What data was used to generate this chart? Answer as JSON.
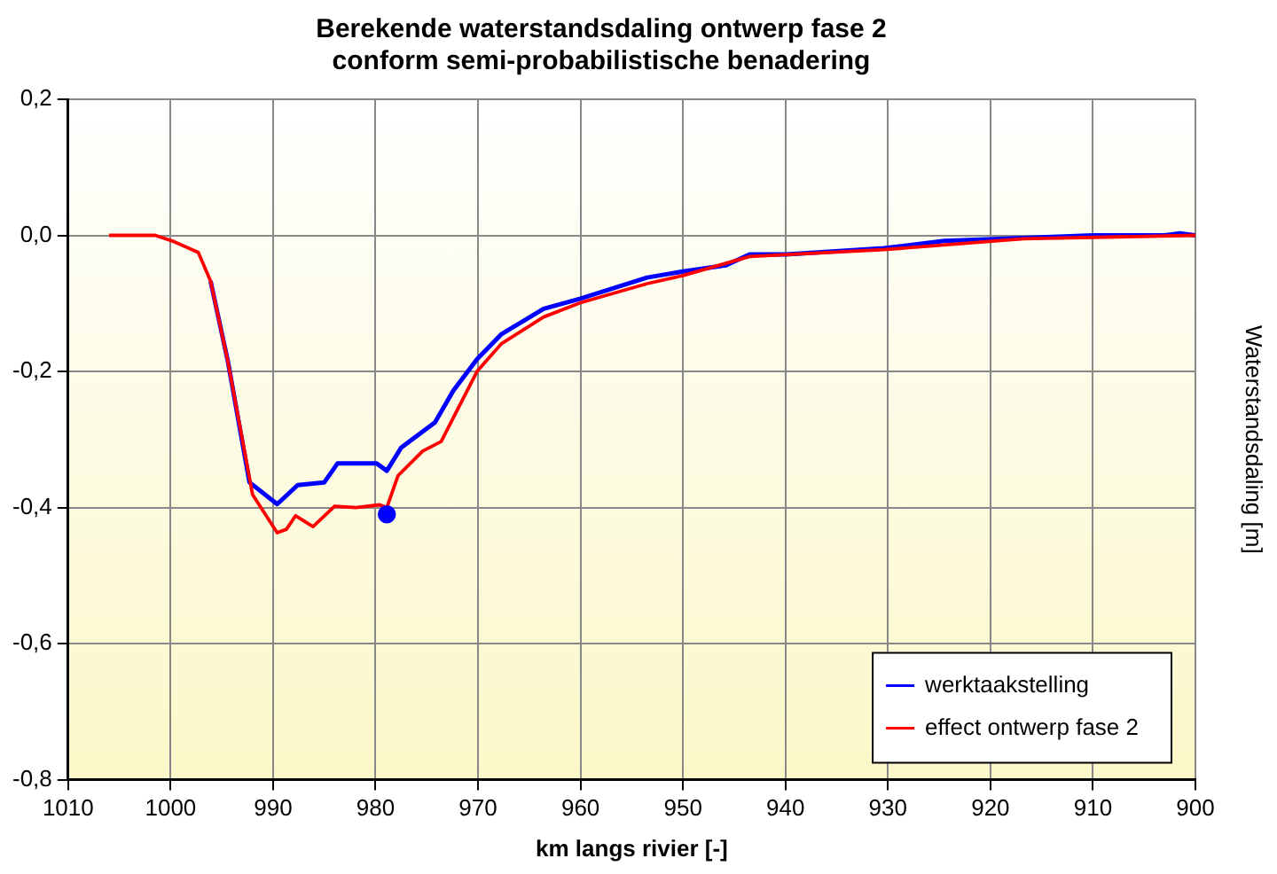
{
  "chart_data": {
    "type": "line",
    "title": "Berekende waterstandsdaling ontwerp fase 2\nconform semi-probabilistische benadering",
    "xlabel": "km langs rivier [-]",
    "ylabel": "Waterstandsdaling [m]",
    "xlim": [
      1010,
      900
    ],
    "xticks": [
      1010,
      1000,
      990,
      980,
      970,
      960,
      950,
      940,
      930,
      920,
      910,
      900
    ],
    "ylim": [
      -0.8,
      0.2
    ],
    "yticks": [
      {
        "value": -0.8,
        "label": "-0,8"
      },
      {
        "value": -0.6,
        "label": "-0,6"
      },
      {
        "value": -0.4,
        "label": "-0,4"
      },
      {
        "value": -0.2,
        "label": "-0,2"
      },
      {
        "value": 0,
        "label": "0,0"
      },
      {
        "value": 0.2,
        "label": "0,2"
      }
    ],
    "grid": true,
    "legend": "bottom right",
    "marker": "none",
    "line_style": "solid",
    "series": [
      {
        "name": "werktaakstelling",
        "color": "#0000ff",
        "x": [
          996.1,
          994.4,
          992.3,
          989.6,
          987.6,
          985,
          983.7,
          979.9,
          978.9,
          977.5,
          974.2,
          972.4,
          970.1,
          967.7,
          963.6,
          960,
          953.5,
          950,
          945.8,
          943.5,
          939.9,
          930.4,
          924.5,
          916.8,
          910,
          903,
          901.5,
          900
        ],
        "values": [
          -0.067,
          -0.186,
          -0.363,
          -0.395,
          -0.367,
          -0.363,
          -0.335,
          -0.335,
          -0.346,
          -0.312,
          -0.275,
          -0.228,
          -0.182,
          -0.145,
          -0.108,
          -0.093,
          -0.062,
          -0.053,
          -0.044,
          -0.028,
          -0.028,
          -0.019,
          -0.008,
          -0.004,
          0,
          0,
          0.003,
          0
        ]
      },
      {
        "name": "effect ontwerp fase 2",
        "color": "#ff0000",
        "x": [
          1006,
          1001.5,
          999.7,
          997.3,
          996.1,
          994.4,
          992,
          989.6,
          988.7,
          987.8,
          986.1,
          984,
          981.9,
          979.6,
          978.9,
          977.8,
          975.4,
          973.6,
          970.1,
          967.7,
          963.6,
          960,
          953.5,
          950,
          943.5,
          930.4,
          916.8,
          900
        ],
        "values": [
          0,
          0,
          -0.009,
          -0.025,
          -0.067,
          -0.186,
          -0.381,
          -0.437,
          -0.432,
          -0.412,
          -0.428,
          -0.398,
          -0.4,
          -0.396,
          -0.4,
          -0.353,
          -0.317,
          -0.303,
          -0.2,
          -0.159,
          -0.12,
          -0.099,
          -0.071,
          -0.059,
          -0.031,
          -0.021,
          -0.005,
          0
        ]
      },
      {
        "type": "scatter",
        "color": "#0000ff",
        "marker": "circle",
        "x": [
          978.9
        ],
        "values": [
          -0.41
        ]
      }
    ]
  }
}
